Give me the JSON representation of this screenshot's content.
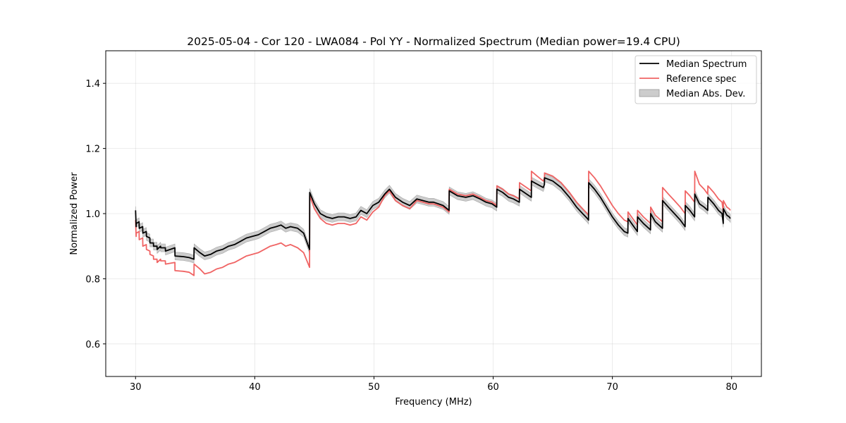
{
  "chart_data": {
    "type": "line",
    "title": "2025-05-04 - Cor 120 - LWA084 - Pol YY - Normalized Spectrum (Median power=19.4 CPU)",
    "xlabel": "Frequency (MHz)",
    "ylabel": "Normalized Power",
    "xlim": [
      27.5,
      82.5
    ],
    "ylim": [
      0.5,
      1.5
    ],
    "xticks": [
      30,
      40,
      50,
      60,
      70,
      80
    ],
    "xtick_labels": [
      "30",
      "40",
      "50",
      "60",
      "70",
      "80"
    ],
    "yticks": [
      0.6,
      0.8,
      1.0,
      1.2,
      1.4
    ],
    "ytick_labels": [
      "0.6",
      "0.8",
      "1.0",
      "1.2",
      "1.4"
    ],
    "grid": true,
    "legend_position": "top-right",
    "mad_halfwidth": 0.012,
    "series": [
      {
        "name": "Median Spectrum",
        "color": "#000000",
        "x": [
          30.0,
          30.05,
          30.06,
          30.3,
          30.31,
          30.6,
          30.61,
          30.9,
          30.91,
          31.2,
          31.21,
          31.5,
          31.51,
          31.8,
          31.81,
          32.1,
          32.11,
          32.5,
          32.51,
          33.3,
          33.31,
          34.0,
          34.5,
          34.9,
          34.91,
          35.4,
          35.8,
          36.3,
          36.8,
          37.3,
          37.8,
          38.3,
          38.8,
          39.3,
          39.8,
          40.3,
          40.8,
          41.3,
          41.8,
          42.2,
          42.6,
          43.0,
          43.6,
          44.1,
          44.6,
          44.61,
          45.0,
          45.5,
          46.0,
          46.5,
          47.0,
          47.5,
          48.0,
          48.5,
          48.9,
          49.4,
          49.9,
          50.4,
          50.9,
          51.3,
          51.4,
          51.8,
          52.4,
          53.0,
          53.6,
          54.1,
          54.6,
          55.0,
          55.4,
          55.8,
          56.3,
          56.31,
          57.0,
          57.7,
          58.3,
          58.9,
          59.4,
          59.9,
          60.3,
          60.31,
          60.8,
          61.3,
          61.7,
          62.2,
          62.21,
          62.8,
          63.2,
          63.21,
          63.7,
          64.2,
          64.3,
          64.31,
          65.0,
          65.7,
          66.4,
          67.0,
          67.5,
          67.9,
          68.0,
          68.01,
          68.5,
          69.0,
          69.5,
          70.0,
          70.5,
          71.0,
          71.3,
          71.31,
          71.7,
          72.1,
          72.11,
          72.6,
          73.2,
          73.21,
          73.6,
          74.2,
          74.21,
          74.7,
          75.2,
          75.7,
          76.1,
          76.11,
          76.5,
          76.9,
          76.91,
          77.3,
          77.7,
          78.0,
          78.01,
          78.5,
          78.9,
          79.2,
          79.3,
          79.31,
          79.6,
          79.8,
          79.9
        ],
        "values": [
          1.01,
          0.96,
          0.97,
          0.975,
          0.955,
          0.96,
          0.94,
          0.945,
          0.93,
          0.925,
          0.91,
          0.91,
          0.9,
          0.9,
          0.89,
          0.9,
          0.895,
          0.895,
          0.885,
          0.895,
          0.87,
          0.868,
          0.865,
          0.86,
          0.895,
          0.88,
          0.87,
          0.875,
          0.885,
          0.89,
          0.9,
          0.905,
          0.915,
          0.925,
          0.93,
          0.935,
          0.945,
          0.955,
          0.96,
          0.965,
          0.955,
          0.96,
          0.955,
          0.94,
          0.89,
          1.065,
          1.03,
          1.0,
          0.99,
          0.985,
          0.99,
          0.99,
          0.985,
          0.99,
          1.01,
          1.0,
          1.025,
          1.035,
          1.06,
          1.075,
          1.07,
          1.05,
          1.035,
          1.025,
          1.045,
          1.04,
          1.035,
          1.035,
          1.03,
          1.025,
          1.01,
          1.07,
          1.055,
          1.05,
          1.055,
          1.045,
          1.035,
          1.03,
          1.02,
          1.075,
          1.065,
          1.05,
          1.045,
          1.035,
          1.075,
          1.06,
          1.05,
          1.1,
          1.09,
          1.08,
          1.09,
          1.11,
          1.1,
          1.08,
          1.05,
          1.02,
          1.0,
          0.985,
          0.98,
          1.095,
          1.075,
          1.05,
          1.02,
          0.99,
          0.965,
          0.945,
          0.94,
          0.985,
          0.965,
          0.945,
          0.99,
          0.97,
          0.95,
          1.0,
          0.975,
          0.955,
          1.04,
          1.02,
          1.0,
          0.98,
          0.96,
          1.025,
          1.01,
          0.99,
          1.06,
          1.03,
          1.02,
          1.01,
          1.05,
          1.03,
          1.01,
          1.0,
          0.97,
          1.015,
          0.995,
          0.99,
          0.985
        ]
      },
      {
        "name": "Reference spec",
        "color": "#f06464",
        "x": [
          30.0,
          30.05,
          30.06,
          30.3,
          30.31,
          30.6,
          30.61,
          30.9,
          30.91,
          31.2,
          31.21,
          31.5,
          31.51,
          31.8,
          31.81,
          32.1,
          32.11,
          32.5,
          32.51,
          33.3,
          33.31,
          34.0,
          34.5,
          34.9,
          34.91,
          35.4,
          35.8,
          36.3,
          36.8,
          37.3,
          37.8,
          38.3,
          38.8,
          39.3,
          39.8,
          40.3,
          40.8,
          41.3,
          41.8,
          42.2,
          42.6,
          43.0,
          43.6,
          44.1,
          44.6,
          44.61,
          45.0,
          45.5,
          46.0,
          46.5,
          47.0,
          47.5,
          48.0,
          48.5,
          48.9,
          49.4,
          49.9,
          50.4,
          50.9,
          51.3,
          51.4,
          51.8,
          52.4,
          53.0,
          53.6,
          54.1,
          54.6,
          55.0,
          55.4,
          55.8,
          56.3,
          56.31,
          57.0,
          57.7,
          58.3,
          58.9,
          59.4,
          59.9,
          60.3,
          60.31,
          60.8,
          61.3,
          61.7,
          62.2,
          62.21,
          62.8,
          63.2,
          63.21,
          63.7,
          64.2,
          64.3,
          64.31,
          65.0,
          65.7,
          66.4,
          67.0,
          67.5,
          67.9,
          68.0,
          68.01,
          68.5,
          69.0,
          69.5,
          70.0,
          70.5,
          71.0,
          71.3,
          71.31,
          71.7,
          72.1,
          72.11,
          72.6,
          73.2,
          73.21,
          73.6,
          74.2,
          74.21,
          74.7,
          75.2,
          75.7,
          76.1,
          76.11,
          76.5,
          76.9,
          76.91,
          77.3,
          77.7,
          78.0,
          78.01,
          78.5,
          78.9,
          79.2,
          79.3,
          79.31,
          79.6,
          79.8,
          79.9
        ],
        "values": [
          0.98,
          0.93,
          0.94,
          0.945,
          0.92,
          0.925,
          0.9,
          0.905,
          0.89,
          0.885,
          0.875,
          0.87,
          0.86,
          0.86,
          0.85,
          0.86,
          0.855,
          0.855,
          0.845,
          0.85,
          0.825,
          0.823,
          0.82,
          0.81,
          0.845,
          0.83,
          0.815,
          0.82,
          0.83,
          0.835,
          0.845,
          0.85,
          0.86,
          0.87,
          0.875,
          0.88,
          0.89,
          0.9,
          0.905,
          0.91,
          0.9,
          0.905,
          0.895,
          0.88,
          0.835,
          1.055,
          1.015,
          0.985,
          0.97,
          0.965,
          0.97,
          0.97,
          0.965,
          0.97,
          0.99,
          0.98,
          1.005,
          1.02,
          1.055,
          1.07,
          1.065,
          1.04,
          1.025,
          1.015,
          1.04,
          1.035,
          1.03,
          1.03,
          1.025,
          1.02,
          1.005,
          1.075,
          1.06,
          1.055,
          1.06,
          1.05,
          1.04,
          1.035,
          1.025,
          1.085,
          1.075,
          1.06,
          1.055,
          1.045,
          1.095,
          1.08,
          1.07,
          1.13,
          1.115,
          1.1,
          1.11,
          1.125,
          1.115,
          1.095,
          1.065,
          1.035,
          1.015,
          1.0,
          0.995,
          1.13,
          1.11,
          1.085,
          1.055,
          1.025,
          1.0,
          0.98,
          0.975,
          1.005,
          0.985,
          0.965,
          1.01,
          0.99,
          0.97,
          1.02,
          0.995,
          0.975,
          1.08,
          1.06,
          1.04,
          1.02,
          1.0,
          1.07,
          1.055,
          1.035,
          1.13,
          1.09,
          1.075,
          1.06,
          1.085,
          1.065,
          1.045,
          1.035,
          1.005,
          1.04,
          1.02,
          1.015,
          1.01
        ]
      },
      {
        "name": "Median Abs. Dev.",
        "color": "#bfbfbf"
      }
    ]
  }
}
